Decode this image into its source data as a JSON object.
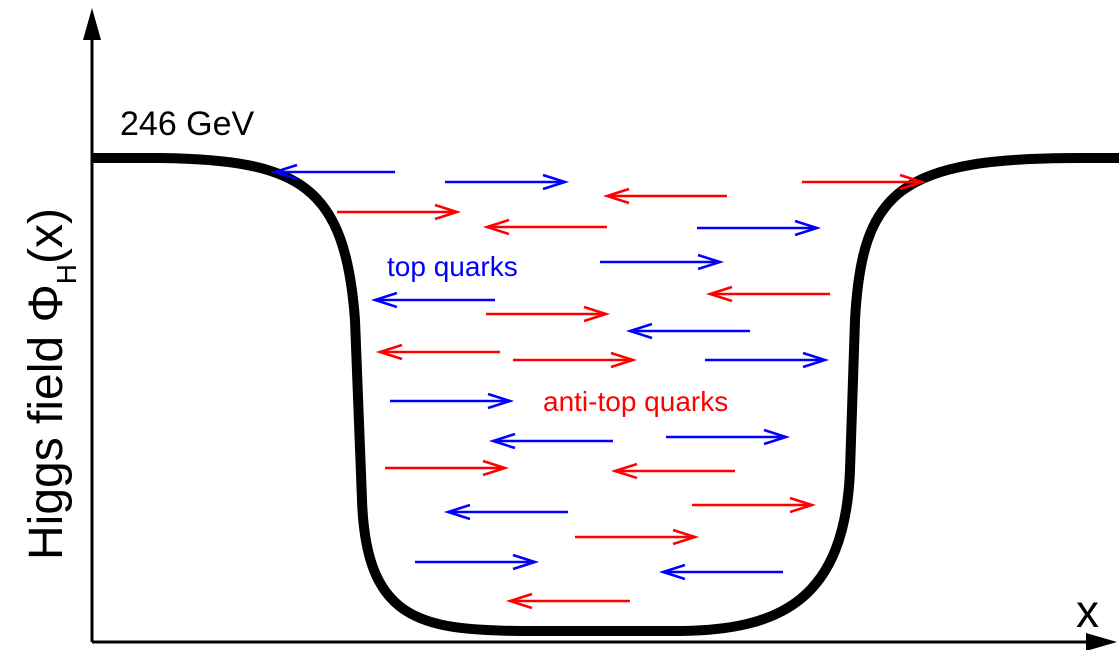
{
  "axes": {
    "y_label_main": "Higgs field Φ",
    "y_label_sub": "H",
    "y_label_tail": "(x)",
    "x_label": "x"
  },
  "vev_label": "246 GeV",
  "labels": {
    "top_quarks": "top quarks",
    "anti_top_quarks": "anti-top quarks"
  },
  "colors": {
    "top_quark": "#0000ff",
    "anti_top_quark": "#ff0000",
    "profile": "#000000",
    "axis": "#000000"
  }
}
